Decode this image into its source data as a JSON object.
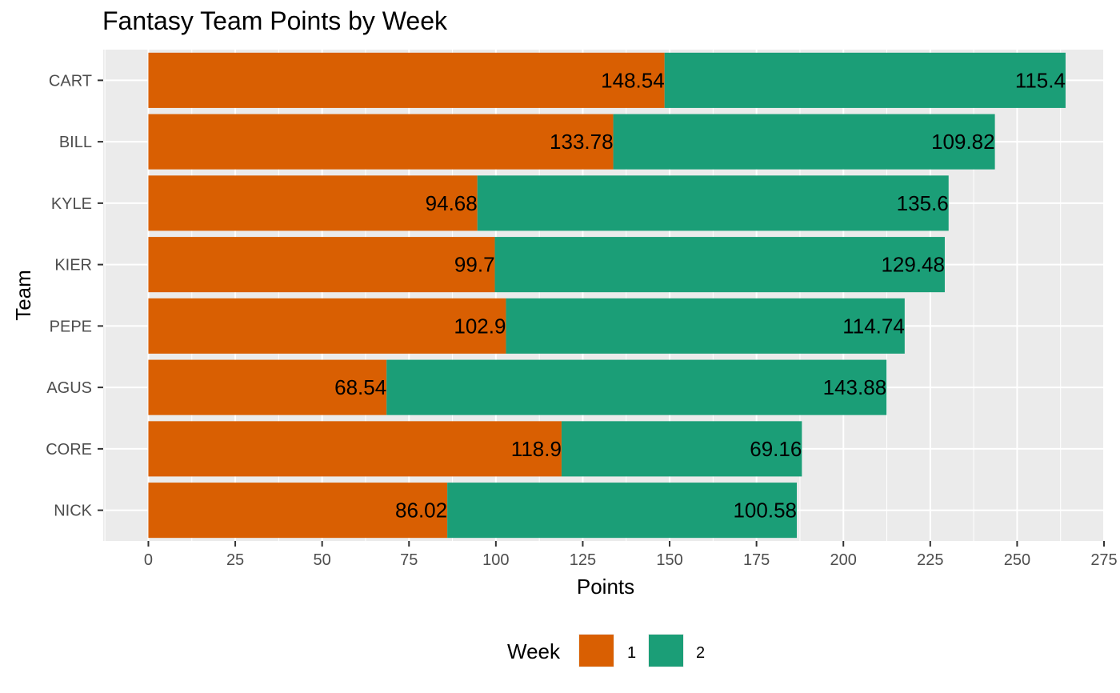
{
  "chart_data": {
    "type": "bar",
    "orientation": "horizontal",
    "stacked": true,
    "title": "Fantasy Team Points by Week",
    "xlabel": "Points",
    "ylabel": "Team",
    "categories": [
      "CART",
      "BILL",
      "KYLE",
      "KIER",
      "PEPE",
      "AGUS",
      "CORE",
      "NICK"
    ],
    "series": [
      {
        "name": "1",
        "color": "#d95f02",
        "values": [
          148.54,
          133.78,
          94.68,
          99.7,
          102.9,
          68.54,
          118.9,
          86.02
        ]
      },
      {
        "name": "2",
        "color": "#1b9e77",
        "values": [
          115.4,
          109.82,
          135.6,
          129.48,
          114.74,
          143.88,
          69.16,
          100.58
        ]
      }
    ],
    "data_labels": [
      [
        "148.54",
        "133.78",
        "94.68",
        "99.7",
        "102.9",
        "68.54",
        "118.9",
        "86.02"
      ],
      [
        "115.4",
        "109.82",
        "135.6",
        "129.48",
        "114.74",
        "143.88",
        "69.16",
        "100.58"
      ]
    ],
    "xlim": [
      -13,
      275
    ],
    "xticks": [
      0,
      25,
      50,
      75,
      100,
      125,
      150,
      175,
      200,
      225,
      250,
      275
    ],
    "xtick_labels": [
      "0",
      "25",
      "50",
      "75",
      "100",
      "125",
      "150",
      "175",
      "200",
      "225",
      "250",
      "275"
    ],
    "grid": true,
    "legend": {
      "title": "Week",
      "placement": "bottom",
      "entries": [
        "1",
        "2"
      ]
    },
    "colors": {
      "panel_background": "#ebebeb",
      "grid": "#ffffff",
      "axis_text": "#4d4d4d"
    }
  }
}
